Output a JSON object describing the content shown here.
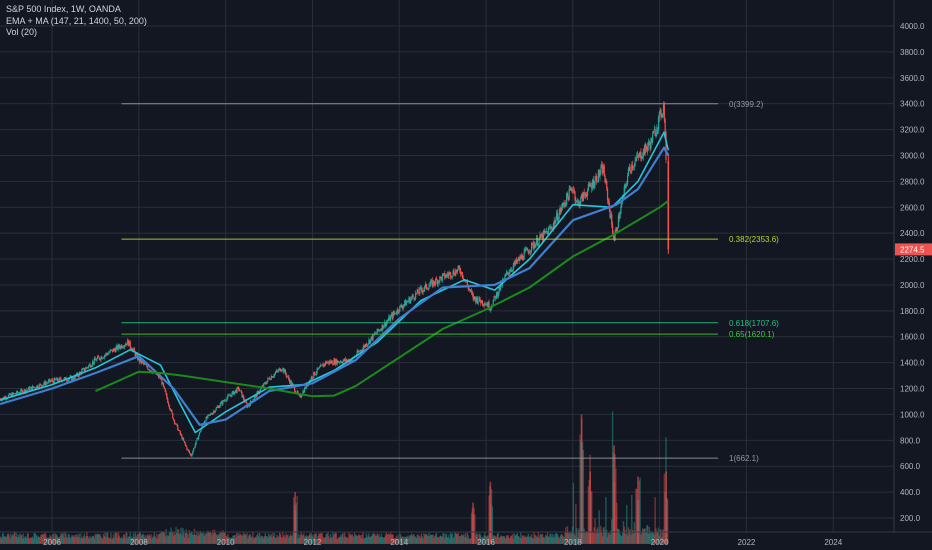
{
  "legend": {
    "symbol": "S&P 500 Index, 1W, OANDA",
    "indicator": "EMA + MA (147, 21, 1400, 50, 200)",
    "volume": "Vol (20)"
  },
  "colors": {
    "background": "#131722",
    "grid": "#2a2e39",
    "text": "#d1d4dc",
    "axis_text": "#b2b5be",
    "up": "#26a69a",
    "down": "#ef5350",
    "ema_short": "#26c6da",
    "ema_mid": "#3f7fd0",
    "ma_long": "#1b8a1b",
    "fib_0": "#9598a1",
    "fib_382": "#b6d630",
    "fib_618": "#26c281",
    "fib_65": "#3fc93a",
    "fib_1": "#9598a1",
    "price_badge": "#ef5350"
  },
  "chart_data": {
    "type": "candlestick",
    "title": "S&P 500 Index, 1W, OANDA",
    "x_ticks": [
      "2006",
      "2008",
      "2010",
      "2012",
      "2014",
      "2016",
      "2018",
      "2020",
      "2022",
      "2024"
    ],
    "y_ticks": [
      "200.0",
      "400.0",
      "600.0",
      "800.0",
      "1000.0",
      "1200.0",
      "1400.0",
      "1600.0",
      "1800.0",
      "2000.0",
      "2200.0",
      "2400.0",
      "2600.0",
      "2800.0",
      "3000.0",
      "3200.0",
      "3400.0",
      "3600.0",
      "3800.0",
      "4000.0"
    ],
    "ylim": [
      0,
      4100
    ],
    "xlim": [
      2004.8,
      2025.4
    ],
    "grid": true,
    "last_price": "2274.5",
    "price_path": [
      [
        2004.8,
        1120
      ],
      [
        2005.5,
        1200
      ],
      [
        2006.0,
        1260
      ],
      [
        2006.5,
        1280
      ],
      [
        2007.0,
        1420
      ],
      [
        2007.75,
        1560
      ],
      [
        2008.0,
        1420
      ],
      [
        2008.5,
        1280
      ],
      [
        2008.8,
        960
      ],
      [
        2009.1,
        740
      ],
      [
        2009.2,
        680
      ],
      [
        2009.5,
        950
      ],
      [
        2010.0,
        1120
      ],
      [
        2010.3,
        1200
      ],
      [
        2010.5,
        1060
      ],
      [
        2011.0,
        1280
      ],
      [
        2011.3,
        1360
      ],
      [
        2011.7,
        1130
      ],
      [
        2012.0,
        1300
      ],
      [
        2012.3,
        1400
      ],
      [
        2012.9,
        1420
      ],
      [
        2013.5,
        1640
      ],
      [
        2014.0,
        1820
      ],
      [
        2014.5,
        1960
      ],
      [
        2015.0,
        2060
      ],
      [
        2015.4,
        2120
      ],
      [
        2015.7,
        1900
      ],
      [
        2016.0,
        1860
      ],
      [
        2016.1,
        1830
      ],
      [
        2016.5,
        2100
      ],
      [
        2017.0,
        2280
      ],
      [
        2017.5,
        2440
      ],
      [
        2018.0,
        2760
      ],
      [
        2018.1,
        2620
      ],
      [
        2018.7,
        2900
      ],
      [
        2018.95,
        2350
      ],
      [
        2019.3,
        2900
      ],
      [
        2019.8,
        3100
      ],
      [
        2020.1,
        3390
      ],
      [
        2020.15,
        2950
      ],
      [
        2020.2,
        2274.5
      ]
    ],
    "series": [
      {
        "name": "EMA",
        "values": [
          [
            2004.8,
            1110
          ],
          [
            2006.0,
            1230
          ],
          [
            2007.0,
            1360
          ],
          [
            2007.8,
            1500
          ],
          [
            2008.5,
            1380
          ],
          [
            2009.0,
            1050
          ],
          [
            2009.3,
            860
          ],
          [
            2010.0,
            1020
          ],
          [
            2011.0,
            1210
          ],
          [
            2011.8,
            1230
          ],
          [
            2012.5,
            1340
          ],
          [
            2013.5,
            1560
          ],
          [
            2014.5,
            1880
          ],
          [
            2015.5,
            2040
          ],
          [
            2016.2,
            1960
          ],
          [
            2017.0,
            2200
          ],
          [
            2018.0,
            2620
          ],
          [
            2018.9,
            2600
          ],
          [
            2019.5,
            2800
          ],
          [
            2020.1,
            3180
          ],
          [
            2020.2,
            3040
          ]
        ]
      },
      {
        "name": "EMA",
        "values": [
          [
            2004.8,
            1080
          ],
          [
            2006.0,
            1200
          ],
          [
            2007.0,
            1320
          ],
          [
            2008.0,
            1450
          ],
          [
            2008.8,
            1200
          ],
          [
            2009.4,
            920
          ],
          [
            2010.0,
            960
          ],
          [
            2011.0,
            1180
          ],
          [
            2012.0,
            1240
          ],
          [
            2013.0,
            1420
          ],
          [
            2014.0,
            1740
          ],
          [
            2015.0,
            1980
          ],
          [
            2016.2,
            2000
          ],
          [
            2017.0,
            2130
          ],
          [
            2018.0,
            2500
          ],
          [
            2019.0,
            2620
          ],
          [
            2019.5,
            2740
          ],
          [
            2020.1,
            3060
          ],
          [
            2020.2,
            3000
          ]
        ]
      },
      {
        "name": "MA",
        "values": [
          [
            2007.0,
            1180
          ],
          [
            2008.0,
            1330
          ],
          [
            2008.5,
            1320
          ],
          [
            2009.0,
            1300
          ],
          [
            2010.0,
            1250
          ],
          [
            2011.0,
            1200
          ],
          [
            2012.0,
            1140
          ],
          [
            2012.5,
            1145
          ],
          [
            2013.0,
            1220
          ],
          [
            2014.0,
            1440
          ],
          [
            2015.0,
            1660
          ],
          [
            2016.0,
            1810
          ],
          [
            2017.0,
            1980
          ],
          [
            2018.0,
            2220
          ],
          [
            2019.0,
            2400
          ],
          [
            2020.0,
            2600
          ],
          [
            2020.2,
            2650
          ]
        ]
      }
    ],
    "volume_peaks": [
      [
        2011.6,
        400
      ],
      [
        2015.7,
        320
      ],
      [
        2016.1,
        480
      ],
      [
        2018.2,
        1000
      ],
      [
        2018.4,
        560
      ],
      [
        2018.95,
        760
      ],
      [
        2019.5,
        520
      ],
      [
        2020.15,
        560
      ]
    ],
    "fib_levels": [
      {
        "ratio": "0",
        "price": 3399.2,
        "label": "0(3399.2)"
      },
      {
        "ratio": "0.382",
        "price": 2353.6,
        "label": "0.382(2353.6)"
      },
      {
        "ratio": "0.618",
        "price": 1707.6,
        "label": "0.618(1707.6)"
      },
      {
        "ratio": "0.65",
        "price": 1620.1,
        "label": "0.65(1620.1)"
      },
      {
        "ratio": "1",
        "price": 662.1,
        "label": "1(662.1)"
      }
    ],
    "fib_start_x": 2007.6
  }
}
